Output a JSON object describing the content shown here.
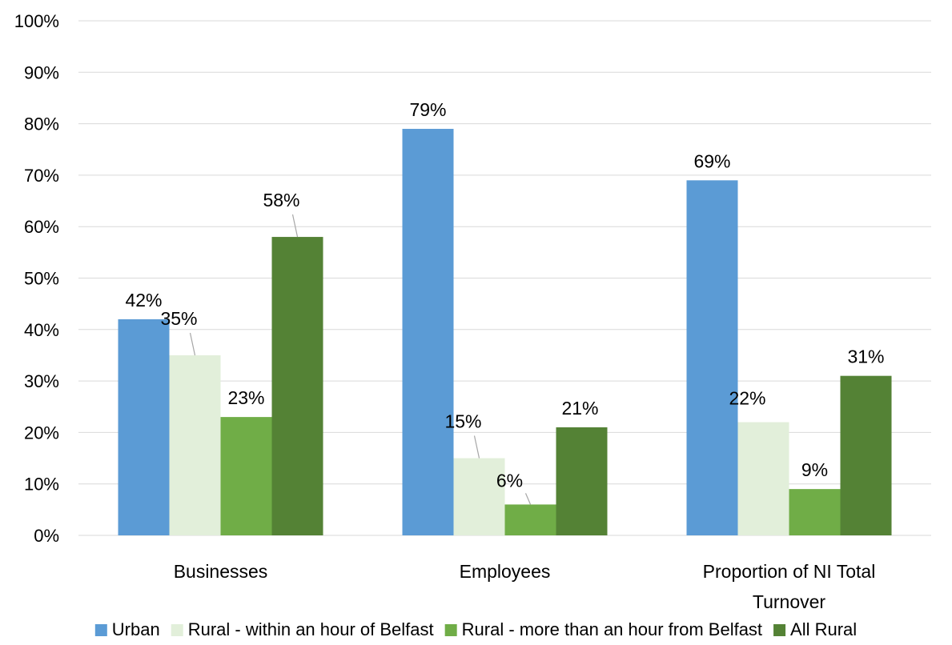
{
  "chart_data": {
    "type": "bar",
    "title": "",
    "xlabel": "",
    "ylabel": "",
    "categories": [
      [
        "Businesses"
      ],
      [
        "Employees"
      ],
      [
        "Proportion of NI Total",
        "Turnover"
      ]
    ],
    "series": [
      {
        "name": "Urban",
        "color": "#5B9BD5",
        "values": [
          42,
          79,
          69
        ]
      },
      {
        "name": "Rural - within an hour of Belfast",
        "color": "#E2EFDA",
        "values": [
          35,
          15,
          22
        ]
      },
      {
        "name": "Rural - more than an hour from Belfast",
        "color": "#70AD47",
        "values": [
          23,
          6,
          9
        ]
      },
      {
        "name": "All Rural",
        "color": "#548235",
        "values": [
          58,
          21,
          31
        ]
      }
    ],
    "data_labels": [
      [
        "42%",
        "79%",
        "69%"
      ],
      [
        "35%",
        "15%",
        "22%"
      ],
      [
        "23%",
        "6%",
        "9%"
      ],
      [
        "58%",
        "21%",
        "31%"
      ]
    ],
    "ylim": [
      0,
      100
    ],
    "yticks": [
      "0%",
      "10%",
      "20%",
      "30%",
      "40%",
      "50%",
      "60%",
      "70%",
      "80%",
      "90%",
      "100%"
    ],
    "grid": true,
    "legend_position": "bottom",
    "gridline_color": "#D9D9D9",
    "leader_line_color": "#A6A6A6"
  }
}
